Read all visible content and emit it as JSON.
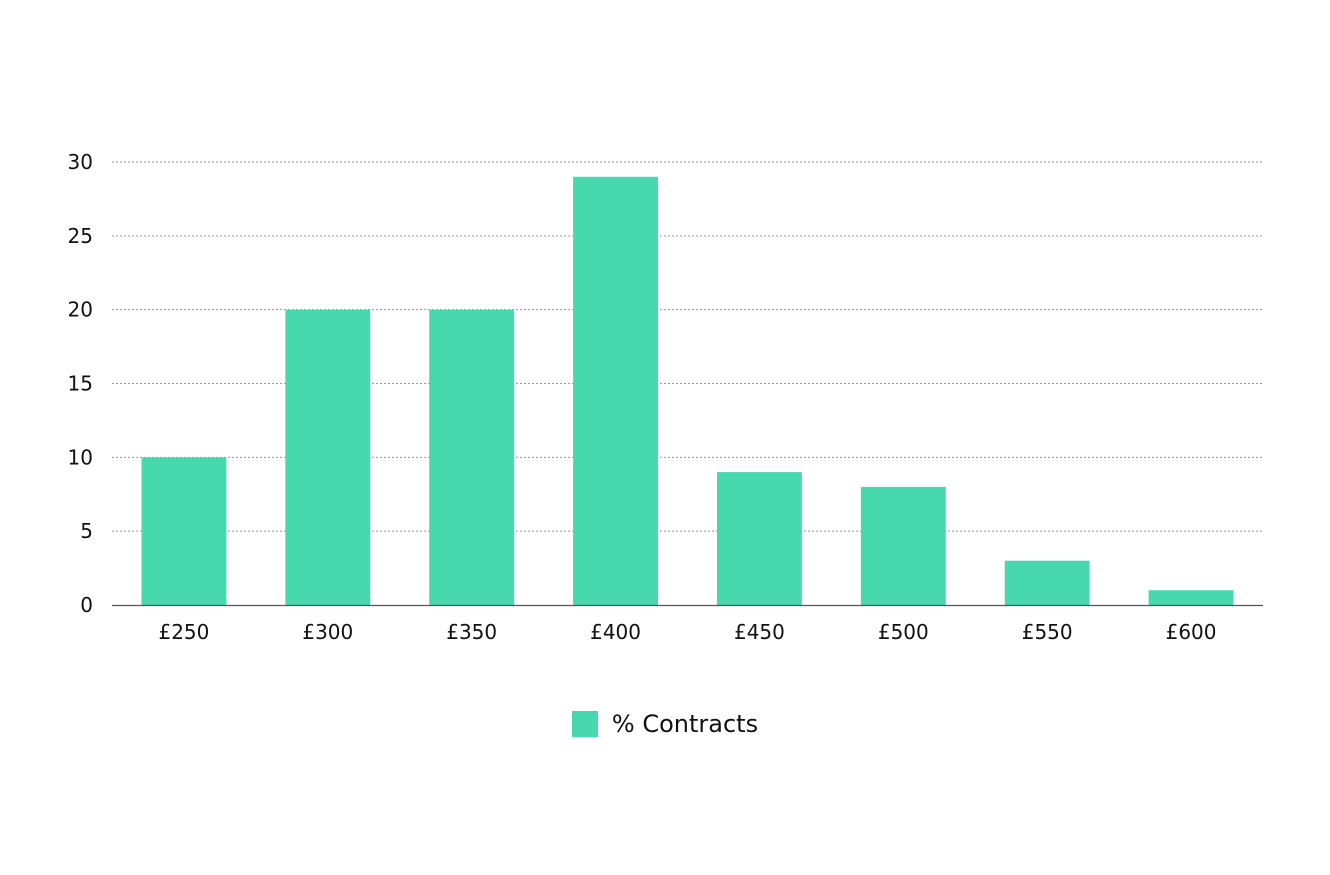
{
  "chart_data": {
    "type": "bar",
    "categories": [
      "£250",
      "£300",
      "£350",
      "£400",
      "£450",
      "£500",
      "£550",
      "£600"
    ],
    "series": [
      {
        "name": "% Contracts",
        "values": [
          10,
          20,
          20,
          29,
          9,
          8,
          3,
          1
        ]
      }
    ],
    "title": "",
    "xlabel": "",
    "ylabel": "",
    "ylim": [
      0,
      30
    ],
    "yticks": [
      "0",
      "5",
      "10",
      "15",
      "20",
      "25",
      "30"
    ],
    "grid": true,
    "legend_position": "bottom-center",
    "colors": {
      "bar": "#47d9ad",
      "grid": "#9a9a9a",
      "axis": "#555555",
      "text": "#111111"
    }
  },
  "legend": {
    "items": [
      {
        "label": "% Contracts",
        "color": "#47d9ad"
      }
    ]
  }
}
